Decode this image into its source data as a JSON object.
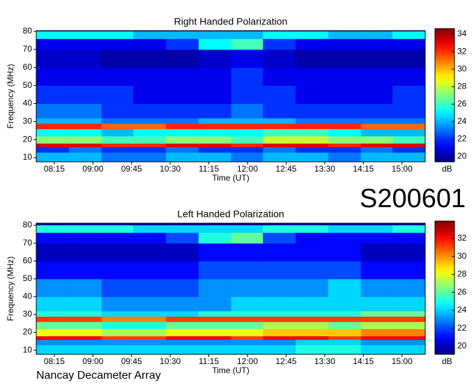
{
  "chart_data": [
    {
      "type": "heatmap",
      "title": "Right Handed Polarization",
      "x_label": "Time (UT)",
      "y_label": "Frequency (MHz)",
      "colorbar_label": "dB",
      "xlim": [
        474,
        927
      ],
      "ylim": [
        7.7,
        80.4
      ],
      "clim": [
        19.4,
        34.4
      ],
      "xticks": [
        {
          "value": 495,
          "label": "08:15"
        },
        {
          "value": 540,
          "label": "09:00"
        },
        {
          "value": 585,
          "label": "09:45"
        },
        {
          "value": 630,
          "label": "10:30"
        },
        {
          "value": 675,
          "label": "11:15"
        },
        {
          "value": 720,
          "label": "12:00"
        },
        {
          "value": 765,
          "label": "12:45"
        },
        {
          "value": 810,
          "label": "13:30"
        },
        {
          "value": 855,
          "label": "14:15"
        },
        {
          "value": 900,
          "label": "15:00"
        }
      ],
      "yticks": [
        10,
        20,
        30,
        40,
        50,
        60,
        70,
        80
      ],
      "cticks": [
        20,
        22,
        24,
        26,
        28,
        30,
        32,
        34
      ],
      "xbins": [
        474,
        512,
        550,
        587,
        625,
        663,
        701,
        738,
        776,
        814,
        852,
        889,
        927
      ],
      "ybins": [
        8,
        13,
        16,
        18,
        22,
        26,
        29,
        32,
        40,
        50,
        60,
        70,
        76,
        80
      ],
      "colormap": "jet",
      "values": [
        [
          24,
          24,
          23,
          23,
          24,
          24,
          23,
          24,
          24,
          23,
          24,
          24
        ],
        [
          22,
          23,
          22,
          22,
          23,
          22,
          22,
          23,
          22,
          22,
          23,
          22
        ],
        [
          33,
          33,
          32,
          32,
          33,
          33,
          32,
          33,
          33,
          32,
          33,
          33
        ],
        [
          27,
          27,
          26,
          26,
          27,
          27,
          26,
          28,
          28,
          27,
          27,
          26
        ],
        [
          25,
          25,
          24,
          25,
          25,
          25,
          25,
          26,
          26,
          25,
          24,
          24
        ],
        [
          32,
          32,
          31,
          31,
          32,
          32,
          32,
          32,
          32,
          32,
          31,
          31
        ],
        [
          24,
          24,
          23,
          23,
          23,
          24,
          24,
          24,
          23,
          23,
          23,
          23
        ],
        [
          23,
          23,
          22,
          22,
          22,
          22,
          23,
          22,
          22,
          22,
          22,
          22
        ],
        [
          22,
          22,
          22,
          21,
          21,
          21,
          22,
          22,
          21,
          21,
          21,
          22
        ],
        [
          21,
          21,
          21,
          21,
          21,
          21,
          22,
          21,
          21,
          21,
          21,
          21
        ],
        [
          20.5,
          20.5,
          20,
          20,
          20,
          20.5,
          21,
          20.5,
          20,
          20,
          20,
          20
        ],
        [
          21,
          21,
          21,
          21,
          22,
          25,
          26,
          22,
          21,
          21,
          21,
          21
        ],
        [
          25,
          25,
          25,
          24,
          24,
          24,
          24,
          25,
          25,
          24,
          24,
          25
        ]
      ]
    },
    {
      "type": "heatmap",
      "title": "Left Handed Polarization",
      "x_label": "Time (UT)",
      "y_label": "Frequency (MHz)",
      "colorbar_label": "dB",
      "xlim": [
        474,
        927
      ],
      "ylim": [
        7.7,
        81.2
      ],
      "clim": [
        19.1,
        33.7
      ],
      "xticks": [
        {
          "value": 495,
          "label": "08:15"
        },
        {
          "value": 540,
          "label": "09:00"
        },
        {
          "value": 585,
          "label": "09:45"
        },
        {
          "value": 630,
          "label": "10:30"
        },
        {
          "value": 675,
          "label": "11:15"
        },
        {
          "value": 720,
          "label": "12:00"
        },
        {
          "value": 765,
          "label": "12:45"
        },
        {
          "value": 810,
          "label": "13:30"
        },
        {
          "value": 855,
          "label": "14:15"
        },
        {
          "value": 900,
          "label": "15:00"
        }
      ],
      "yticks": [
        10,
        20,
        30,
        40,
        50,
        60,
        70,
        80
      ],
      "cticks": [
        20,
        22,
        24,
        26,
        28,
        30,
        32
      ],
      "xbins": [
        474,
        512,
        550,
        587,
        625,
        663,
        701,
        738,
        776,
        814,
        852,
        889,
        927
      ],
      "ybins": [
        8,
        13,
        16,
        18,
        22,
        26,
        29,
        32,
        40,
        50,
        60,
        70,
        76,
        80
      ],
      "colormap": "jet",
      "values": [
        [
          24,
          24,
          24,
          24,
          24,
          24,
          24,
          24,
          25,
          25,
          24,
          24
        ],
        [
          23,
          23,
          23,
          23,
          23,
          23,
          23,
          23,
          24,
          24,
          23,
          23
        ],
        [
          32,
          32,
          31,
          31,
          32,
          32,
          31,
          32,
          32,
          31,
          32,
          32
        ],
        [
          28,
          28,
          27,
          27,
          28,
          28,
          28,
          29,
          29,
          29,
          30,
          30
        ],
        [
          26,
          26,
          25,
          25,
          26,
          26,
          26,
          27,
          27,
          26,
          27,
          27
        ],
        [
          31,
          31,
          30,
          30,
          31,
          31,
          31,
          31,
          31,
          31,
          31,
          31
        ],
        [
          25,
          25,
          24,
          24,
          24,
          25,
          25,
          25,
          25,
          25,
          26,
          26
        ],
        [
          24,
          24,
          23,
          23,
          23,
          23,
          24,
          24,
          24,
          24,
          24,
          24
        ],
        [
          23,
          23,
          22,
          22,
          22,
          23,
          23,
          23,
          23,
          24,
          23,
          23
        ],
        [
          21,
          21,
          21,
          21,
          21,
          22,
          22,
          22,
          22,
          22,
          21,
          21
        ],
        [
          20,
          20,
          20,
          20,
          20,
          21,
          21,
          21,
          21,
          21,
          20,
          20
        ],
        [
          21,
          21,
          21,
          21,
          22,
          25,
          26,
          22,
          21,
          21,
          21,
          21
        ],
        [
          25,
          25,
          25,
          24,
          24,
          24,
          24,
          25,
          25,
          24,
          24,
          25
        ]
      ]
    }
  ],
  "observation_id": "S200601",
  "footer": "Nancay Decameter Array"
}
